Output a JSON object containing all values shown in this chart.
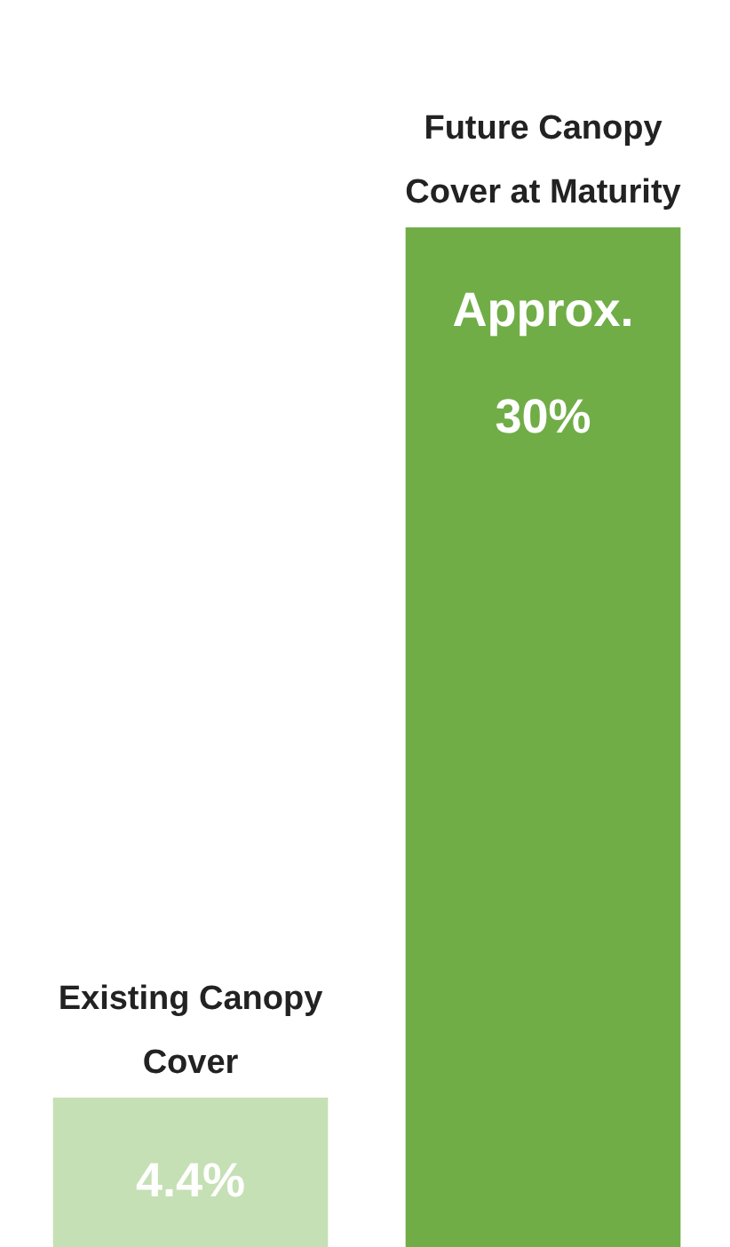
{
  "chart_data": {
    "type": "bar",
    "categories": [
      "Existing Canopy Cover",
      "Future Canopy Cover at Maturity"
    ],
    "values": [
      4.4,
      30
    ],
    "colors": [
      "#c5e0b4",
      "#70ad47"
    ],
    "value_labels": [
      "4.4%",
      "Approx. 30%"
    ],
    "tick_labels": false,
    "grid": false,
    "legend": false
  }
}
